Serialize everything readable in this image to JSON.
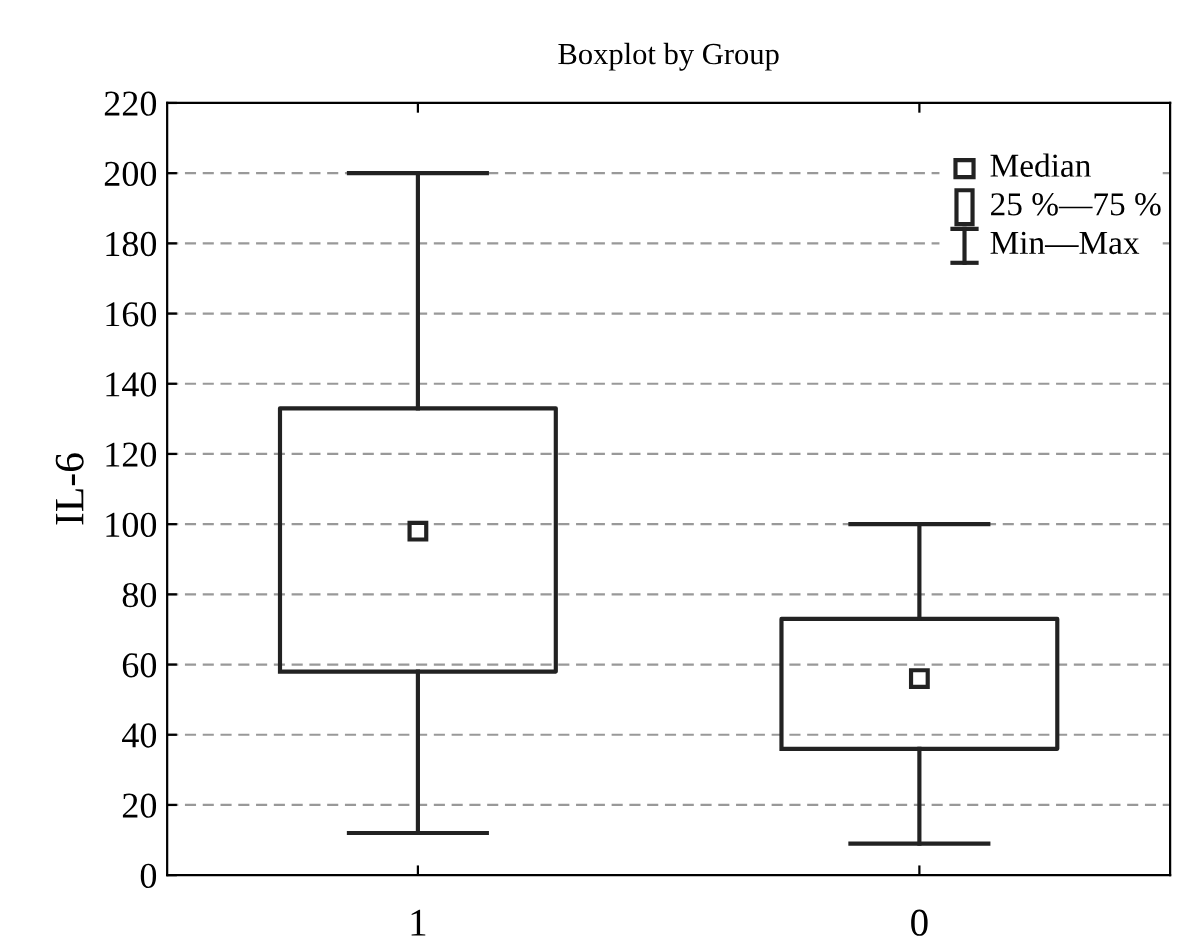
{
  "chart_data": {
    "type": "box",
    "title": "Boxplot by Group",
    "ylabel": "IL-6",
    "categories": [
      "1",
      "0"
    ],
    "boxes": [
      {
        "low": 12,
        "q1": 58,
        "median": 98,
        "q3": 133,
        "high": 200
      },
      {
        "low": 9,
        "q1": 36,
        "median": 56,
        "q3": 73,
        "high": 100
      }
    ],
    "ylim": [
      0,
      220
    ],
    "yticks": [
      0,
      20,
      40,
      60,
      80,
      100,
      120,
      140,
      160,
      180,
      200,
      220
    ],
    "grid": "y",
    "marker": "square",
    "annotations": [
      "Median",
      "25 %—75 %",
      "Min—Max"
    ]
  }
}
